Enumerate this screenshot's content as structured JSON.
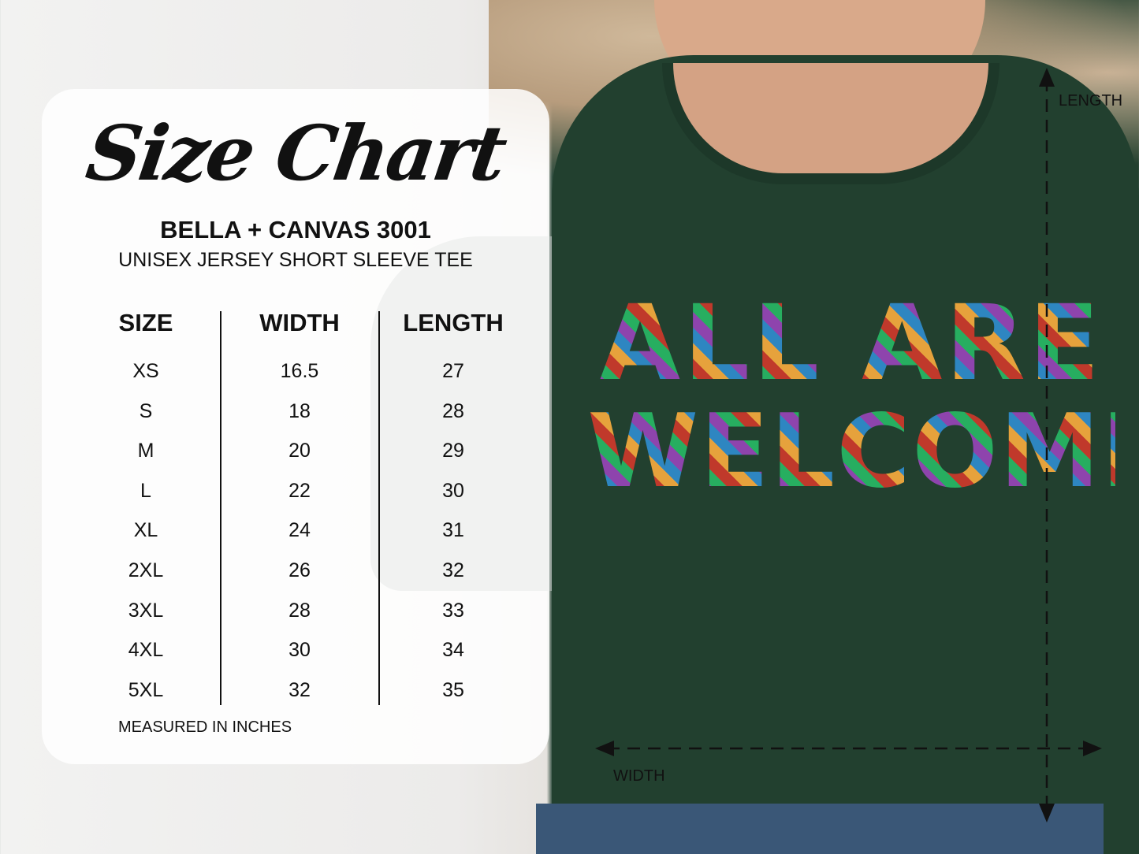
{
  "chart_title": "Size Chart",
  "brand": "BELLA + CANVAS 3001",
  "product": "UNISEX JERSEY SHORT SLEEVE TEE",
  "headers": [
    "SIZE",
    "WIDTH",
    "LENGTH"
  ],
  "rows": [
    [
      "XS",
      "16.5",
      "27"
    ],
    [
      "S",
      "18",
      "28"
    ],
    [
      "M",
      "20",
      "29"
    ],
    [
      "L",
      "22",
      "30"
    ],
    [
      "XL",
      "24",
      "31"
    ],
    [
      "2XL",
      "26",
      "32"
    ],
    [
      "3XL",
      "28",
      "33"
    ],
    [
      "4XL",
      "30",
      "34"
    ],
    [
      "5XL",
      "32",
      "35"
    ]
  ],
  "note": "MEASURED IN INCHES",
  "shirt_design": {
    "line1": "ALL ARE",
    "line2": "WELCOME"
  },
  "measure_labels": {
    "length": "LENGTH",
    "width": "WIDTH"
  },
  "colors": {
    "shirt": "#22402f",
    "text": "#111111"
  }
}
